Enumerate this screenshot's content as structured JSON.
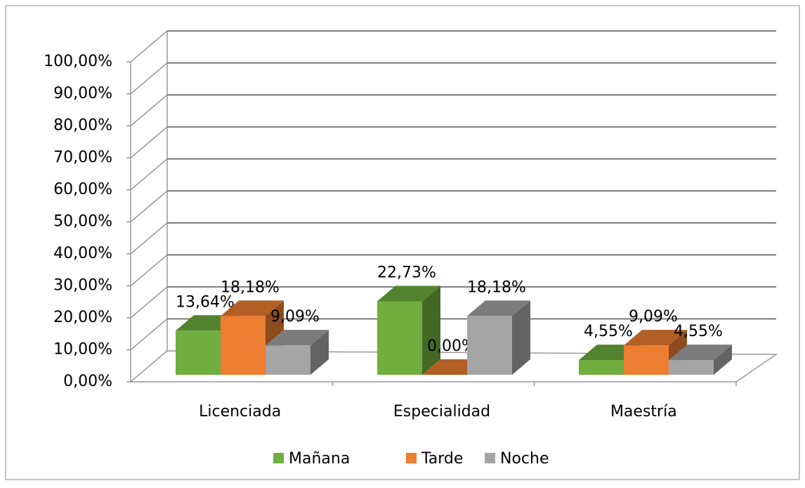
{
  "chart_data": {
    "type": "bar3d",
    "categories": [
      "Licenciada",
      "Especialidad",
      "Maestría"
    ],
    "series": [
      {
        "name": "Mañana",
        "color": "#6fae3f",
        "values": [
          13.64,
          22.73,
          4.55
        ],
        "value_labels": [
          "13,64%",
          "22,73%",
          "4,55%"
        ]
      },
      {
        "name": "Tarde",
        "color": "#ed7d31",
        "values": [
          18.18,
          0,
          9.09
        ],
        "value_labels": [
          "18,18%",
          "0,00%",
          "9,09%"
        ]
      },
      {
        "name": "Noche",
        "color": "#a5a5a5",
        "values": [
          9.09,
          18.18,
          4.55
        ],
        "value_labels": [
          "9,09%",
          "18,18%",
          "4,55%"
        ]
      }
    ],
    "ylim": [
      0,
      100
    ],
    "yticks": [
      {
        "value": 0,
        "label": "0,00%"
      },
      {
        "value": 10,
        "label": "10,00%"
      },
      {
        "value": 20,
        "label": "20,00%"
      },
      {
        "value": 30,
        "label": "30,00%"
      },
      {
        "value": 40,
        "label": "40,00%"
      },
      {
        "value": 50,
        "label": "50,00%"
      },
      {
        "value": 60,
        "label": "60,00%"
      },
      {
        "value": 70,
        "label": "70,00%"
      },
      {
        "value": 80,
        "label": "80,00%"
      },
      {
        "value": 90,
        "label": "90,00%"
      },
      {
        "value": 100,
        "label": "100,00%"
      }
    ],
    "grid": true,
    "legend": "bottom"
  }
}
